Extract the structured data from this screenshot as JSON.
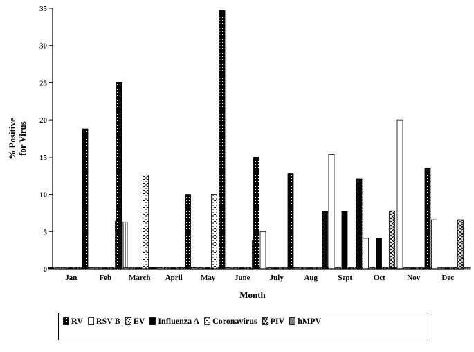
{
  "chart_data": {
    "type": "bar",
    "xlabel": "Month",
    "ylabel_lines": [
      "% Positive",
      "for Virus"
    ],
    "ylim": [
      0,
      35
    ],
    "yticks": [
      0,
      5,
      10,
      15,
      20,
      25,
      30,
      35
    ],
    "categories": [
      "Jan",
      "Feb",
      "March",
      "April",
      "May",
      "June",
      "July",
      "Aug",
      "Sept",
      "Oct",
      "Nov",
      "Dec"
    ],
    "series": [
      {
        "name": "RV",
        "pattern": "dots",
        "values": [
          0,
          18.8,
          25.0,
          0,
          10.0,
          34.7,
          15.0,
          12.8,
          7.7,
          12.1,
          0,
          13.5
        ]
      },
      {
        "name": "RSV B",
        "pattern": "white",
        "values": [
          0,
          0,
          0,
          0,
          0,
          0,
          5.0,
          0,
          15.4,
          4.1,
          20.0,
          6.6
        ]
      },
      {
        "name": "EV",
        "pattern": "diagonal",
        "values": [
          0,
          0,
          0,
          0,
          0,
          0,
          0,
          0,
          0,
          0,
          0,
          0
        ]
      },
      {
        "name": "Influenza A",
        "pattern": "black",
        "values": [
          0,
          0,
          0,
          0,
          0,
          0,
          0,
          0,
          7.7,
          4.1,
          0,
          0
        ]
      },
      {
        "name": "Coronavirus",
        "pattern": "dashes",
        "values": [
          0,
          0,
          12.6,
          0,
          10.0,
          0,
          0,
          0,
          0,
          0,
          0,
          0
        ]
      },
      {
        "name": "PIV",
        "pattern": "cross",
        "values": [
          0,
          6.4,
          0,
          0,
          0,
          3.8,
          0,
          0,
          0,
          7.8,
          0,
          6.6
        ]
      },
      {
        "name": "hMPV",
        "pattern": "vertical",
        "values": [
          0,
          6.3,
          0,
          0,
          0,
          0,
          0,
          0,
          0,
          0,
          0,
          0
        ]
      }
    ],
    "legend": "bottom"
  }
}
